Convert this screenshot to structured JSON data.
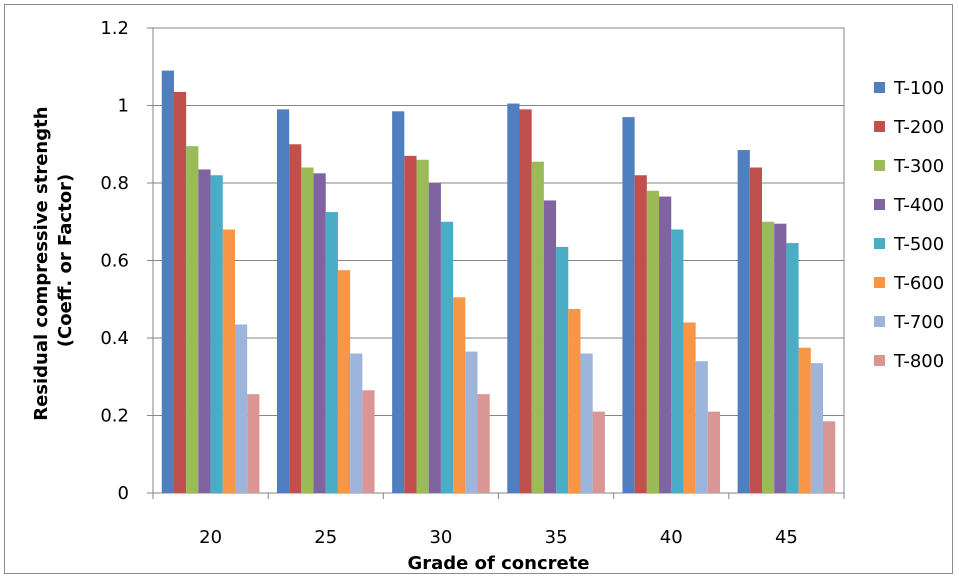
{
  "chart_data": {
    "type": "bar",
    "title": "",
    "xlabel": "Grade of concrete",
    "ylabel_lines": [
      "Residual compressive strength",
      "(Coeff. or Factor)"
    ],
    "ylim": [
      0,
      1.2
    ],
    "yticks": [
      0,
      0.2,
      0.4,
      0.6,
      0.8,
      1,
      1.2
    ],
    "ytick_labels": [
      "0",
      "0.2",
      "0.4",
      "0.6",
      "0.8",
      "1",
      "1.2"
    ],
    "categories": [
      "20",
      "25",
      "30",
      "35",
      "40",
      "45"
    ],
    "grid": "horizontal major gridlines",
    "legend_position": "right",
    "series": [
      {
        "name": "T-100",
        "color": "#4F7FBF",
        "values": [
          1.09,
          0.99,
          0.985,
          1.005,
          0.97,
          0.885
        ]
      },
      {
        "name": "T-200",
        "color": "#C0504D",
        "values": [
          1.035,
          0.9,
          0.87,
          0.99,
          0.82,
          0.84
        ]
      },
      {
        "name": "T-300",
        "color": "#9BBB59",
        "values": [
          0.895,
          0.84,
          0.86,
          0.855,
          0.78,
          0.7
        ]
      },
      {
        "name": "T-400",
        "color": "#8064A2",
        "values": [
          0.835,
          0.825,
          0.8,
          0.755,
          0.765,
          0.695
        ]
      },
      {
        "name": "T-500",
        "color": "#4BACC6",
        "values": [
          0.82,
          0.725,
          0.7,
          0.635,
          0.68,
          0.645
        ]
      },
      {
        "name": "T-600",
        "color": "#F79646",
        "values": [
          0.68,
          0.575,
          0.505,
          0.475,
          0.44,
          0.375
        ]
      },
      {
        "name": "T-700",
        "color": "#9DB4DB",
        "values": [
          0.435,
          0.36,
          0.365,
          0.36,
          0.34,
          0.335
        ]
      },
      {
        "name": "T-800",
        "color": "#D99694",
        "values": [
          0.255,
          0.265,
          0.255,
          0.21,
          0.21,
          0.185
        ]
      }
    ]
  }
}
